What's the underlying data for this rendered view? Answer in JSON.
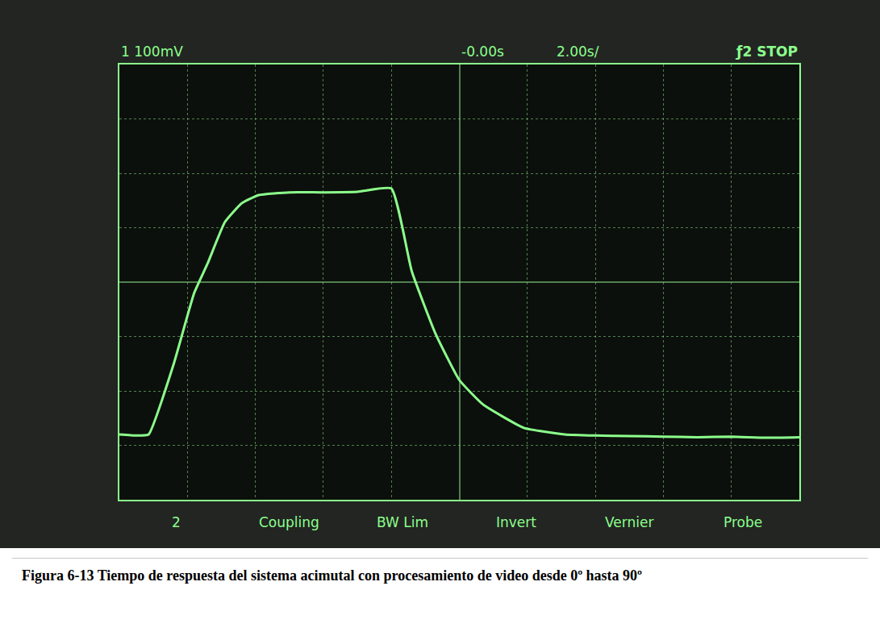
{
  "chart_data": {
    "type": "line",
    "x": [
      -10.0,
      -9.5,
      -9.14,
      -8.4,
      -7.8,
      -7.4,
      -6.9,
      -6.4,
      -5.9,
      -5.0,
      -4.0,
      -3.0,
      -2.0,
      -1.4,
      -0.7,
      0.0,
      0.7,
      1.9,
      3.1,
      4.0,
      5.0,
      6.0,
      7.0,
      8.0,
      9.0,
      10.0
    ],
    "values": [
      -280,
      -282,
      -280,
      -150,
      -20,
      35,
      110,
      145,
      160,
      165,
      165,
      166,
      172,
      20,
      -95,
      -180,
      -225,
      -268,
      -280,
      -282,
      -283,
      -284,
      -285,
      -284,
      -286,
      -285
    ],
    "color": "#8cff8c",
    "xlim": [
      -10,
      10
    ],
    "xticks": [
      -10,
      -8,
      -6,
      -4,
      -2,
      0,
      2,
      4,
      6,
      8,
      10
    ],
    "ylim": [
      -400,
      400
    ],
    "yticks": [
      -400,
      -300,
      -200,
      -100,
      0,
      100,
      200,
      300,
      400
    ],
    "grid": true,
    "tick_labels": false,
    "annotations": {
      "channel": "1 100mV",
      "time_offset": "-0.00s",
      "time_scale": "2.00s/",
      "trigger": "ƒ2 STOP",
      "softkeys": [
        "2",
        "Coupling",
        "BW Lim",
        "Invert",
        "Vernier",
        "Probe"
      ]
    }
  },
  "caption": "Figura 6-13 Tiempo de respuesta del sistema acimutal con procesamiento de video desde 0º hasta 90º"
}
